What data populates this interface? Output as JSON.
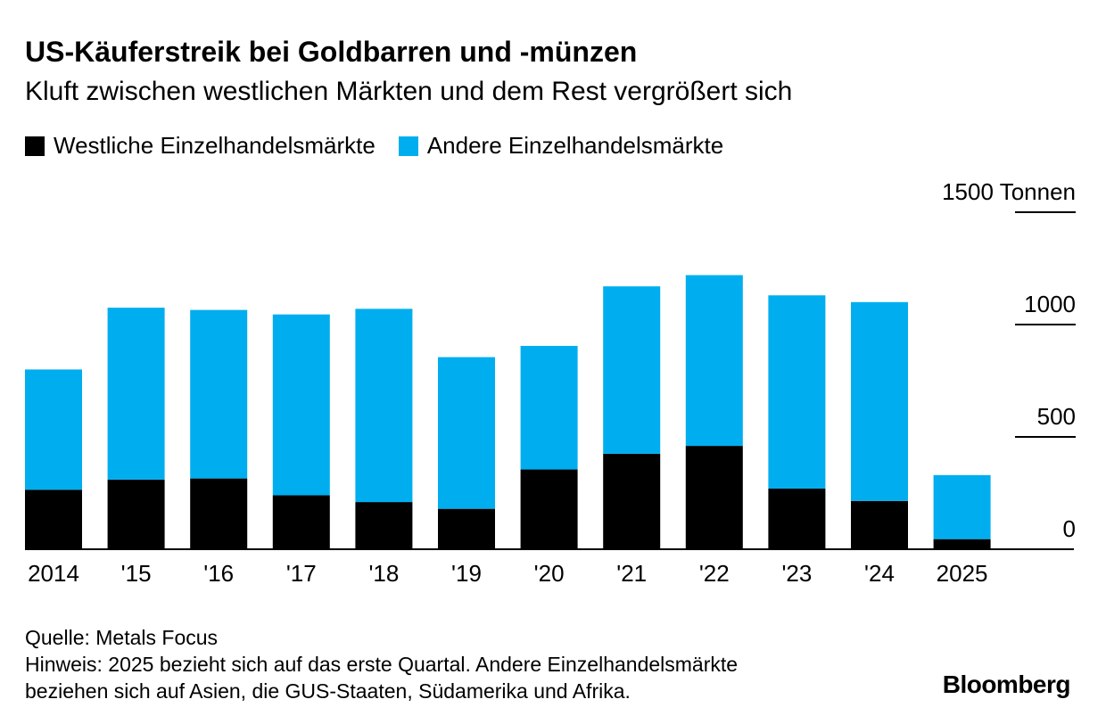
{
  "title": "US-Käuferstreik bei Goldbarren und -münzen",
  "subtitle": "Kluft zwischen westlichen Märkten und dem Rest vergrößert sich",
  "colors": {
    "western": "#000000",
    "other": "#00aeef",
    "axis": "#000000"
  },
  "chart_data": {
    "type": "bar",
    "stacked": true,
    "categories": [
      "2014",
      "'15",
      "'16",
      "'17",
      "'18",
      "'19",
      "'20",
      "'21",
      "'22",
      "'23",
      "'24",
      "2025"
    ],
    "series": [
      {
        "name": "Westliche Einzelhandelsmärkte",
        "values": [
          265,
          310,
          315,
          240,
          210,
          180,
          355,
          425,
          460,
          270,
          215,
          45
        ]
      },
      {
        "name": "Andere Einzelhandelsmärkte",
        "values": [
          535,
          765,
          750,
          805,
          860,
          675,
          550,
          745,
          760,
          860,
          885,
          285
        ]
      }
    ],
    "y_ticks": [
      0,
      500,
      1000,
      1500
    ],
    "y_tick_labels": [
      "0",
      "500",
      "1000",
      "1500 Tonnen"
    ],
    "ylim": [
      0,
      1500
    ],
    "legend_position": "top-left",
    "y_axis_side": "right"
  },
  "footer": {
    "source": "Quelle: Metals Focus",
    "note_line1": "Hinweis: 2025 bezieht sich auf das erste Quartal. Andere Einzelhandelsmärkte",
    "note_line2": "beziehen sich auf Asien, die GUS-Staaten, Südamerika und Afrika."
  },
  "brand": "Bloomberg"
}
